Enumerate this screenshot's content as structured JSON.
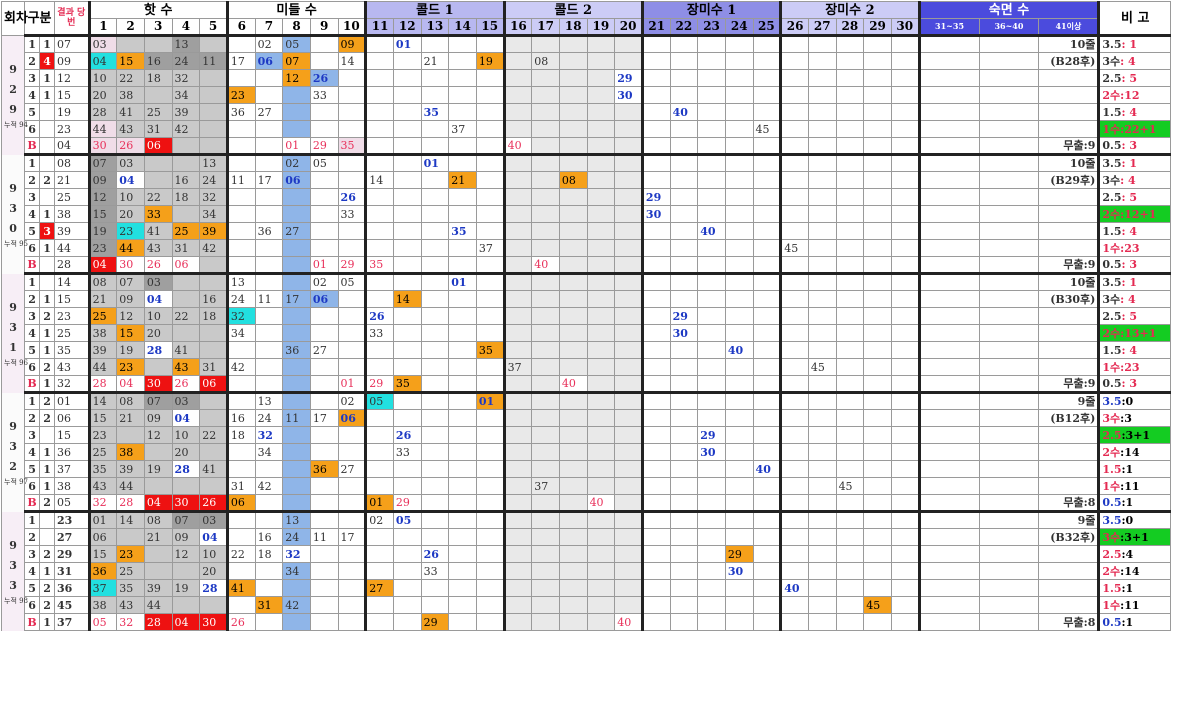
{
  "header": {
    "round": "회차",
    "group": "구분",
    "result": "결과 당번",
    "hot": "핫 수",
    "mid": "미들 수",
    "cold1": "콜드 1",
    "cold2": "콜드 2",
    "long1": "장미수 1",
    "long2": "장미수 2",
    "sleep": "숙면 수",
    "note": "비 고",
    "nums": [
      "1",
      "2",
      "3",
      "4",
      "5",
      "6",
      "7",
      "8",
      "9",
      "10",
      "11",
      "12",
      "13",
      "14",
      "15",
      "16",
      "17",
      "18",
      "19",
      "20",
      "21",
      "22",
      "23",
      "24",
      "25",
      "26",
      "27",
      "28",
      "29",
      "30",
      "31~35",
      "36~40",
      "41이상"
    ]
  },
  "blocks": [
    {
      "round": [
        "9",
        "2",
        "9"
      ],
      "sub": "누적 94",
      "rows": [
        {
          "g": "1",
          "gb": "1",
          "res": "07",
          "cells": {
            "1": "03",
            "4": "13",
            "7": "02",
            "8": "05",
            "10": "09",
            "12": "01"
          },
          "pre": "10줄",
          "note": [
            "3.5",
            ": 1"
          ]
        },
        {
          "g": "2",
          "gb": "4",
          "res": "09",
          "cells": {
            "1": "04",
            "2": "15",
            "3": "16",
            "4": "24",
            "5": "11",
            "6": "17",
            "7": "06",
            "8": "07",
            "10": "14",
            "13": "21",
            "15": "19",
            "17": "08"
          },
          "pre": "(B28후)",
          "note": [
            "3수",
            ": 4"
          ]
        },
        {
          "g": "3",
          "gb": "1",
          "res": "12",
          "cells": {
            "1": "10",
            "2": "22",
            "3": "18",
            "4": "32",
            "8": "12",
            "9": "26",
            "20": "29"
          },
          "pre": "",
          "note": [
            "2.5",
            ": 5"
          ]
        },
        {
          "g": "4",
          "gb": "1",
          "res": "15",
          "cells": {
            "1": "20",
            "2": "38",
            "4": "34",
            "6": "23",
            "9": "33",
            "20": "30"
          },
          "pre": "",
          "note": [
            "2수",
            ":12"
          ]
        },
        {
          "g": "5",
          "gb": "",
          "res": "19",
          "cells": {
            "1": "28",
            "2": "41",
            "3": "25",
            "4": "39",
            "6": "36",
            "7": "27",
            "13": "35",
            "22": "40"
          },
          "pre": "",
          "note": [
            "1.5",
            ": 4"
          ]
        },
        {
          "g": "6",
          "gb": "",
          "res": "23",
          "cells": {
            "1": "44",
            "2": "43",
            "3": "31",
            "4": "42",
            "14": "37",
            "25": "45"
          },
          "pre": "",
          "note": [
            "1수",
            ":22+1"
          ]
        },
        {
          "g": "B",
          "gb": "",
          "res": "04",
          "cells": {
            "1": "30",
            "2": "26",
            "3": "06",
            "8": "01",
            "9": "29",
            "10": "35",
            "16": "40"
          },
          "pre": "무출:9",
          "note": [
            "0.5",
            ": 3"
          ]
        }
      ]
    },
    {
      "round": [
        "9",
        "3",
        "0"
      ],
      "sub": "누적 95",
      "rows": [
        {
          "g": "1",
          "gb": "",
          "res": "08",
          "cells": {
            "1": "07",
            "2": "03",
            "5": "13",
            "8": "02",
            "9": "05",
            "13": "01"
          },
          "pre": "10줄",
          "note": [
            "3.5",
            ": 1"
          ]
        },
        {
          "g": "2",
          "gb": "2",
          "res": "21",
          "cells": {
            "1": "09",
            "2": "04",
            "4": "16",
            "5": "24",
            "6": "11",
            "7": "17",
            "8": "06",
            "11": "14",
            "14": "21",
            "18": "08"
          },
          "pre": "(B29후)",
          "note": [
            "3수",
            ": 4"
          ]
        },
        {
          "g": "3",
          "gb": "",
          "res": "25",
          "cells": {
            "1": "12",
            "2": "10",
            "3": "22",
            "4": "18",
            "5": "32",
            "10": "26",
            "21": "29"
          },
          "pre": "",
          "note": [
            "2.5",
            ": 5"
          ]
        },
        {
          "g": "4",
          "gb": "1",
          "res": "38",
          "cells": {
            "1": "15",
            "2": "20",
            "3": "33",
            "5": "34",
            "10": "33",
            "21": "30"
          },
          "pre": "",
          "note": [
            "2수",
            ":12+1"
          ]
        },
        {
          "g": "5",
          "gb": "3",
          "res": "39",
          "cells": {
            "1": "19",
            "2": "23",
            "3": "41",
            "4": "25",
            "5": "39",
            "7": "36",
            "8": "27",
            "14": "35",
            "23": "40"
          },
          "pre": "",
          "note": [
            "1.5",
            ": 4"
          ]
        },
        {
          "g": "6",
          "gb": "1",
          "res": "44",
          "cells": {
            "1": "23",
            "2": "44",
            "3": "43",
            "4": "31",
            "5": "42",
            "15": "37",
            "26": "45"
          },
          "pre": "",
          "note": [
            "1수",
            ":23"
          ]
        },
        {
          "g": "B",
          "gb": "",
          "res": "28",
          "cells": {
            "1": "04",
            "2": "30",
            "3": "26",
            "4": "06",
            "9": "01",
            "10": "29",
            "11": "35",
            "17": "40"
          },
          "pre": "무출:9",
          "note": [
            "0.5",
            ": 3"
          ]
        }
      ]
    },
    {
      "round": [
        "9",
        "3",
        "1"
      ],
      "sub": "누적 96",
      "rows": [
        {
          "g": "1",
          "gb": "",
          "res": "14",
          "cells": {
            "1": "08",
            "2": "07",
            "3": "03",
            "6": "13",
            "9": "02",
            "10": "05",
            "14": "01"
          },
          "pre": "10줄",
          "note": [
            "3.5",
            ": 1"
          ]
        },
        {
          "g": "2",
          "gb": "1",
          "res": "15",
          "cells": {
            "1": "21",
            "2": "09",
            "3": "04",
            "5": "16",
            "6": "24",
            "7": "11",
            "8": "17",
            "9": "06",
            "12": "14"
          },
          "pre": "(B30후)",
          "note": [
            "3수",
            ": 4"
          ]
        },
        {
          "g": "3",
          "gb": "2",
          "res": "23",
          "cells": {
            "1": "25",
            "2": "12",
            "3": "10",
            "4": "22",
            "5": "18",
            "6": "32",
            "11": "26",
            "22": "29"
          },
          "pre": "",
          "note": [
            "2.5",
            ": 5"
          ]
        },
        {
          "g": "4",
          "gb": "1",
          "res": "25",
          "cells": {
            "1": "38",
            "2": "15",
            "3": "20",
            "6": "34",
            "11": "33",
            "22": "30"
          },
          "pre": "",
          "note": [
            "2수",
            ":13+1"
          ]
        },
        {
          "g": "5",
          "gb": "1",
          "res": "35",
          "cells": {
            "1": "39",
            "2": "19",
            "3": "28",
            "4": "41",
            "8": "36",
            "9": "27",
            "15": "35",
            "24": "40"
          },
          "pre": "",
          "note": [
            "1.5",
            ": 4"
          ]
        },
        {
          "g": "6",
          "gb": "2",
          "res": "43",
          "cells": {
            "1": "44",
            "2": "23",
            "4": "43",
            "5": "31",
            "6": "42",
            "16": "37",
            "27": "45"
          },
          "pre": "",
          "note": [
            "1수",
            ":23"
          ]
        },
        {
          "g": "B",
          "gb": "1",
          "res": "32",
          "cells": {
            "1": "28",
            "2": "04",
            "3": "30",
            "4": "26",
            "5": "06",
            "10": "01",
            "11": "29",
            "12": "35",
            "18": "40"
          },
          "pre": "무출:9",
          "note": [
            "0.5",
            ": 3"
          ]
        }
      ]
    },
    {
      "round": [
        "9",
        "3",
        "2"
      ],
      "sub": "누적 97",
      "rows": [
        {
          "g": "1",
          "gb": "2",
          "res": "01",
          "cells": {
            "1": "14",
            "2": "08",
            "3": "07",
            "4": "03",
            "7": "13",
            "10": "02",
            "11": "05",
            "15": "01"
          },
          "pre": "9줄",
          "note": [
            "3.5",
            ":0"
          ]
        },
        {
          "g": "2",
          "gb": "2",
          "res": "06",
          "cells": {
            "1": "15",
            "2": "21",
            "3": "09",
            "4": "04",
            "6": "16",
            "7": "24",
            "8": "11",
            "9": "17",
            "10": "06"
          },
          "pre": "(B12후)",
          "note": [
            "3수",
            ":3"
          ]
        },
        {
          "g": "3",
          "gb": "",
          "res": "15",
          "cells": {
            "1": "23",
            "3": "12",
            "4": "10",
            "5": "22",
            "6": "18",
            "7": "32",
            "12": "26",
            "23": "29"
          },
          "pre": "",
          "note": [
            "2.5",
            ":3+1"
          ]
        },
        {
          "g": "4",
          "gb": "1",
          "res": "36",
          "cells": {
            "1": "25",
            "2": "38",
            "4": "20",
            "7": "34",
            "12": "33",
            "23": "30"
          },
          "pre": "",
          "note": [
            "2수",
            ":14"
          ]
        },
        {
          "g": "5",
          "gb": "1",
          "res": "37",
          "cells": {
            "1": "35",
            "2": "39",
            "3": "19",
            "4": "28",
            "5": "41",
            "9": "36",
            "10": "27",
            "25": "40"
          },
          "pre": "",
          "note": [
            "1.5",
            ":1"
          ]
        },
        {
          "g": "6",
          "gb": "1",
          "res": "38",
          "cells": {
            "1": "43",
            "2": "44",
            "6": "31",
            "7": "42",
            "17": "37",
            "28": "45"
          },
          "pre": "",
          "note": [
            "1수",
            ":11"
          ]
        },
        {
          "g": "B",
          "gb": "2",
          "res": "05",
          "cells": {
            "1": "32",
            "2": "28",
            "3": "04",
            "4": "30",
            "5": "26",
            "6": "06",
            "11": "01",
            "12": "29",
            "19": "40"
          },
          "pre": "무출:8",
          "note": [
            "0.5",
            ":1"
          ]
        }
      ]
    },
    {
      "round": [
        "9",
        "3",
        "3"
      ],
      "sub": "누적 98",
      "rows": [
        {
          "g": "1",
          "gb": "",
          "res": "23",
          "cells": {
            "1": "01",
            "2": "14",
            "3": "08",
            "4": "07",
            "5": "03",
            "8": "13",
            "11": "02",
            "12": "05"
          },
          "pre": "9줄",
          "note": [
            "3.5",
            ":0"
          ]
        },
        {
          "g": "2",
          "gb": "",
          "res": "27",
          "cells": {
            "1": "06",
            "3": "21",
            "4": "09",
            "5": "04",
            "7": "16",
            "8": "24",
            "9": "11",
            "10": "17"
          },
          "pre": "(B32후)",
          "note": [
            "3수",
            ":3+1"
          ]
        },
        {
          "g": "3",
          "gb": "2",
          "res": "29",
          "cells": {
            "1": "15",
            "2": "23",
            "4": "12",
            "5": "10",
            "6": "22",
            "7": "18",
            "8": "32",
            "13": "26",
            "24": "29"
          },
          "pre": "",
          "note": [
            "2.5",
            ":4"
          ]
        },
        {
          "g": "4",
          "gb": "1",
          "res": "31",
          "cells": {
            "1": "36",
            "2": "25",
            "5": "20",
            "8": "34",
            "13": "33",
            "24": "30"
          },
          "pre": "",
          "note": [
            "2수",
            ":14"
          ]
        },
        {
          "g": "5",
          "gb": "2",
          "res": "36",
          "cells": {
            "1": "37",
            "2": "35",
            "3": "39",
            "4": "19",
            "5": "28",
            "6": "41",
            "11": "27",
            "26": "40"
          },
          "pre": "",
          "note": [
            "1.5",
            ":1"
          ]
        },
        {
          "g": "6",
          "gb": "2",
          "res": "45",
          "cells": {
            "1": "38",
            "2": "43",
            "3": "44",
            "7": "31",
            "8": "42",
            "29": "45"
          },
          "pre": "",
          "note": [
            "1수",
            ":11"
          ]
        },
        {
          "g": "B",
          "gb": "1",
          "res": "37",
          "cells": {
            "1": "05",
            "2": "32",
            "3": "28",
            "4": "04",
            "5": "30",
            "6": "26",
            "13": "29",
            "20": "40"
          },
          "pre": "무출:8",
          "note": [
            "0.5",
            ":1"
          ]
        }
      ]
    }
  ],
  "colors": {
    "orange": "#f5a01a",
    "cyan": "#22e0e0",
    "blue_text": "#1d39c4",
    "pink_text": "#e8305a",
    "green": "#14cc22",
    "red": "#ee1111"
  }
}
